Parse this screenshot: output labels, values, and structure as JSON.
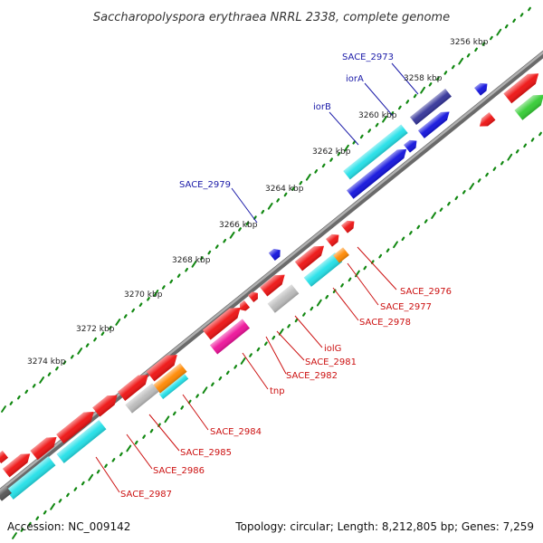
{
  "title": "Saccharopolyspora erythraea NRRL 2338, complete genome",
  "footer": {
    "accession": "Accession: NC_009142",
    "topology": "Topology: circular; Length: 8,212,805 bp; Genes: 7,259"
  },
  "colors": {
    "red": "#ee1111",
    "cyan": "#22e0e8",
    "blue": "#1111dd",
    "navy": "#333399",
    "gray": "#bbbbbb",
    "orange": "#ff8800",
    "magenta": "#ee1199",
    "green": "#33cc33",
    "tick": "#118811",
    "backbone": "#888888",
    "label_blue": "#1a1aa8",
    "label_red": "#cc1111"
  },
  "kbp_markers": [
    "3256 kbp",
    "3258 kbp",
    "3260 kbp",
    "3262 kbp",
    "3264 kbp",
    "3266 kbp",
    "3268 kbp",
    "3270 kbp",
    "3272 kbp",
    "3274 kbp"
  ],
  "outer_labels": [
    "SACE_2973",
    "iorA",
    "iorB",
    "SACE_2979"
  ],
  "inner_labels": [
    "SACE_2976",
    "SACE_2977",
    "SACE_2978",
    "iolG",
    "SACE_2981",
    "SACE_2982",
    "tnp",
    "SACE_2984",
    "SACE_2985",
    "SACE_2986",
    "SACE_2987"
  ]
}
